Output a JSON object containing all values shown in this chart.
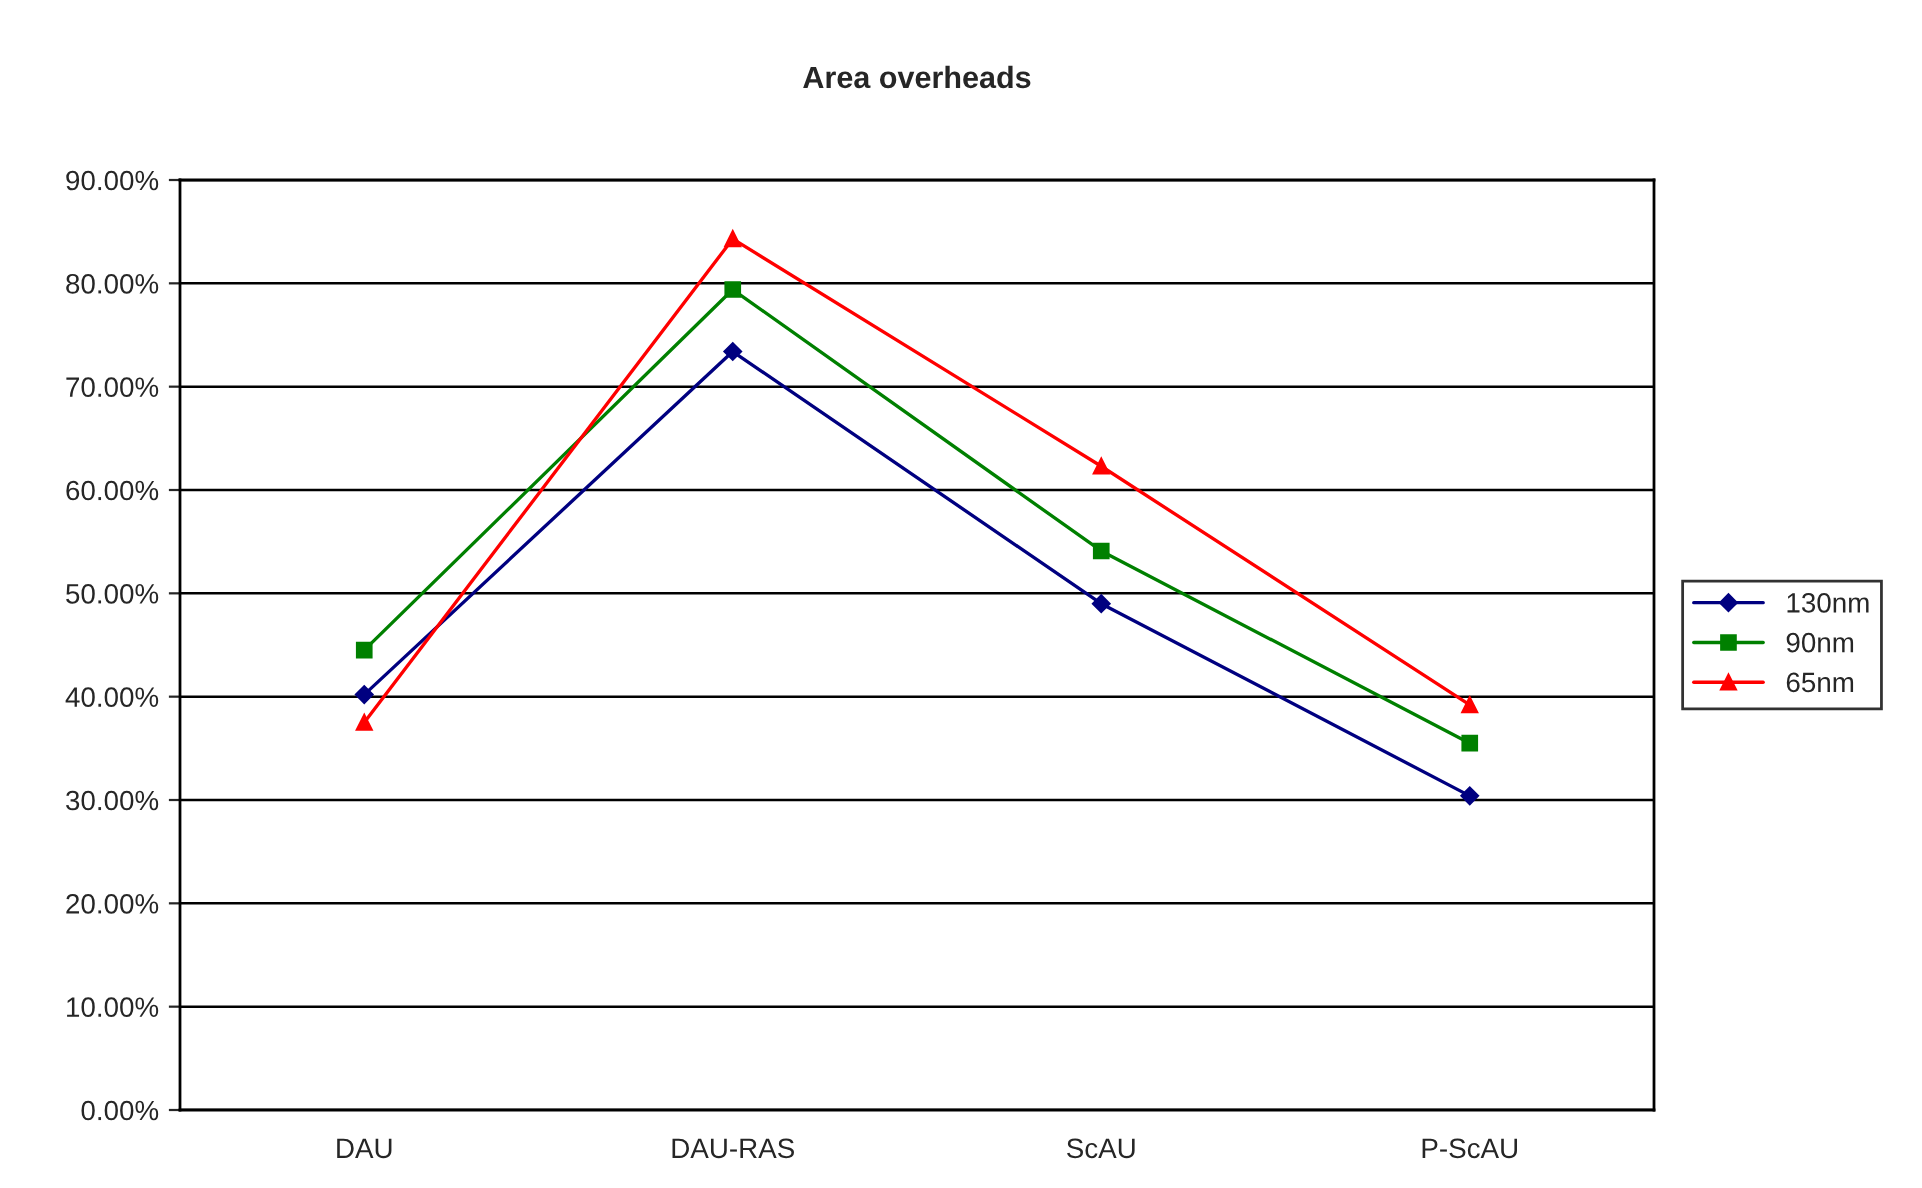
{
  "chart_data": {
    "type": "line",
    "title": "Area overheads",
    "categories": [
      "DAU",
      "DAU-RAS",
      "ScAU",
      "P-ScAU"
    ],
    "series": [
      {
        "name": "130nm",
        "color": "#000080",
        "marker": "diamond",
        "values": [
          40.2,
          73.4,
          49.0,
          30.4
        ]
      },
      {
        "name": "90nm",
        "color": "#008000",
        "marker": "square",
        "values": [
          44.5,
          79.4,
          54.1,
          35.5
        ]
      },
      {
        "name": "65nm",
        "color": "#ff0000",
        "marker": "triangle",
        "values": [
          37.5,
          84.3,
          62.3,
          39.2
        ]
      }
    ],
    "ylim": [
      0,
      90
    ],
    "yticks": [
      {
        "value": 0,
        "label": "0.00%"
      },
      {
        "value": 10,
        "label": "10.00%"
      },
      {
        "value": 20,
        "label": "20.00%"
      },
      {
        "value": 30,
        "label": "30.00%"
      },
      {
        "value": 40,
        "label": "40.00%"
      },
      {
        "value": 50,
        "label": "50.00%"
      },
      {
        "value": 60,
        "label": "60.00%"
      },
      {
        "value": 70,
        "label": "70.00%"
      },
      {
        "value": 80,
        "label": "80.00%"
      },
      {
        "value": 90,
        "label": "90.00%"
      }
    ],
    "grid": "y",
    "legend": "right",
    "line_style": "solid"
  }
}
